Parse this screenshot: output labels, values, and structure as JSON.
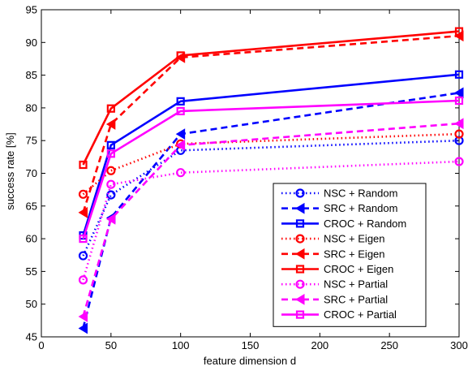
{
  "chart_data": {
    "type": "line",
    "title": "",
    "xlabel": "feature dimension d",
    "ylabel": "success rate [%]",
    "xlim": [
      0,
      300
    ],
    "ylim": [
      45,
      95
    ],
    "xticks": [
      0,
      50,
      100,
      150,
      200,
      250,
      300
    ],
    "yticks": [
      45,
      50,
      55,
      60,
      65,
      70,
      75,
      80,
      85,
      90,
      95
    ],
    "grid": false,
    "legend_position": "bottom-right",
    "x": [
      30,
      50,
      100,
      300
    ],
    "series": [
      {
        "name": "NSC + Random",
        "color": "#0000ff",
        "dash": "dotted",
        "marker": "circle",
        "values": [
          57.4,
          66.7,
          73.5,
          75.0
        ]
      },
      {
        "name": "SRC + Random",
        "color": "#0000ff",
        "dash": "dashed",
        "marker": "triangle-left",
        "values": [
          46.3,
          63.2,
          76.0,
          82.3
        ]
      },
      {
        "name": "CROC + Random",
        "color": "#0000ff",
        "dash": "solid",
        "marker": "square",
        "values": [
          60.5,
          74.3,
          81.0,
          85.1
        ]
      },
      {
        "name": "NSC + Eigen",
        "color": "#ff0000",
        "dash": "dotted",
        "marker": "circle",
        "values": [
          66.8,
          70.4,
          74.5,
          76.0
        ]
      },
      {
        "name": "SRC + Eigen",
        "color": "#ff0000",
        "dash": "dashed",
        "marker": "triangle-left",
        "values": [
          64.0,
          77.5,
          87.7,
          91.0
        ]
      },
      {
        "name": "CROC + Eigen",
        "color": "#ff0000",
        "dash": "solid",
        "marker": "square",
        "values": [
          71.3,
          79.9,
          88.0,
          91.7
        ]
      },
      {
        "name": "NSC + Partial",
        "color": "#ff00ff",
        "dash": "dotted",
        "marker": "circle",
        "values": [
          53.7,
          68.3,
          70.1,
          71.8
        ]
      },
      {
        "name": "SRC + Partial",
        "color": "#ff00ff",
        "dash": "dashed",
        "marker": "triangle-left",
        "values": [
          48.1,
          63.0,
          74.3,
          77.6
        ]
      },
      {
        "name": "CROC + Partial",
        "color": "#ff00ff",
        "dash": "solid",
        "marker": "square",
        "values": [
          60.0,
          73.0,
          79.5,
          81.1
        ]
      }
    ]
  }
}
